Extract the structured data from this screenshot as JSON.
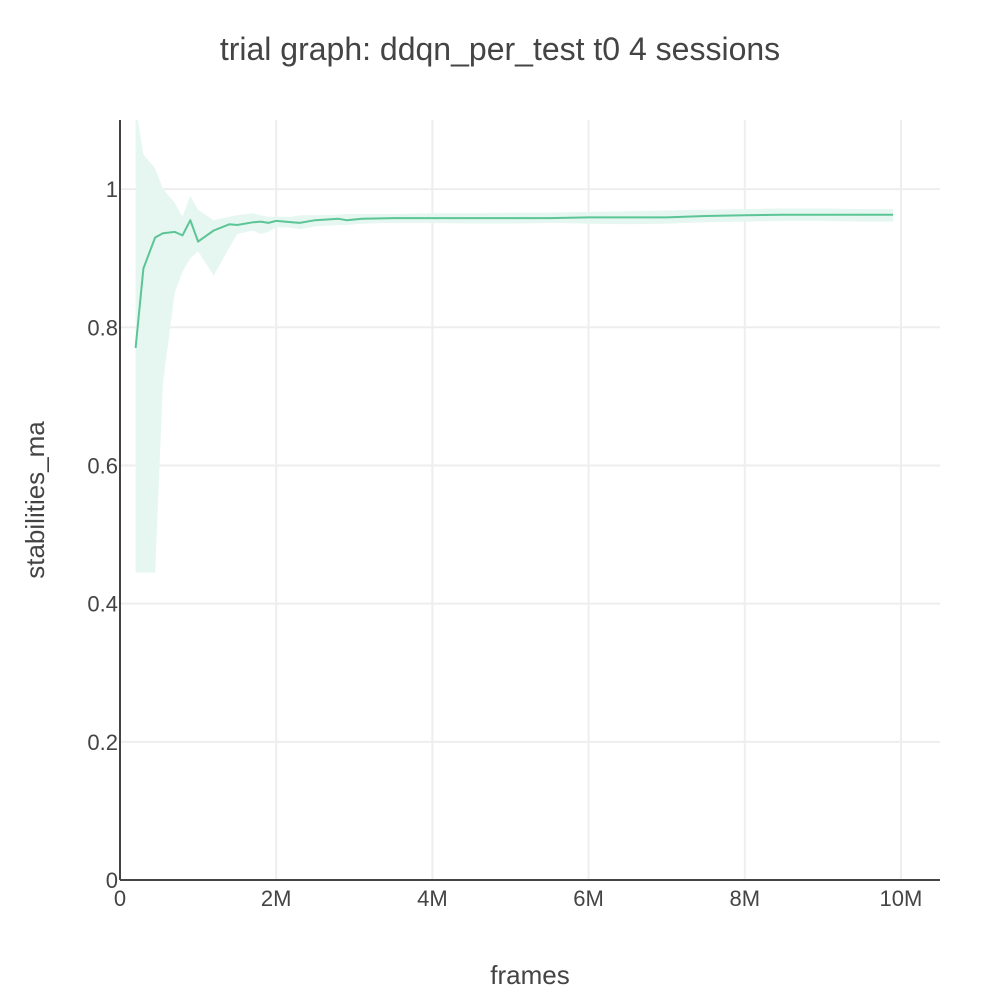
{
  "chart_data": {
    "type": "line",
    "title": "trial graph: ddqn_per_test t0 4 sessions",
    "xlabel": "frames",
    "ylabel": "stabilities_ma",
    "xlim": [
      0,
      10500000
    ],
    "ylim": [
      0,
      1.1
    ],
    "x_ticks": [
      0,
      2000000,
      4000000,
      6000000,
      8000000,
      10000000
    ],
    "x_tick_labels": [
      "0",
      "2M",
      "4M",
      "6M",
      "8M",
      "10M"
    ],
    "y_ticks": [
      0,
      0.2,
      0.4,
      0.6,
      0.8,
      1.0
    ],
    "y_tick_labels": [
      "0",
      "0.2",
      "0.4",
      "0.6",
      "0.8",
      "1"
    ],
    "grid": true,
    "legend": "none",
    "colors": {
      "line": "#5cc596",
      "band": "#e6f6f0"
    },
    "series": [
      {
        "x": [
          200000,
          300000,
          450000,
          550000,
          700000,
          800000,
          900000,
          1000000,
          1200000,
          1400000,
          1500000,
          1700000,
          1800000,
          1900000,
          2000000,
          2200000,
          2300000,
          2500000,
          2800000,
          2900000,
          3100000,
          3500000,
          4000000,
          4500000,
          5000000,
          5500000,
          6000000,
          6500000,
          7000000,
          7500000,
          8000000,
          8500000,
          9000000,
          9500000,
          9900000
        ],
        "y": [
          0.77,
          0.885,
          0.93,
          0.936,
          0.938,
          0.933,
          0.955,
          0.924,
          0.94,
          0.949,
          0.948,
          0.952,
          0.953,
          0.951,
          0.954,
          0.952,
          0.951,
          0.955,
          0.957,
          0.955,
          0.957,
          0.958,
          0.958,
          0.958,
          0.958,
          0.958,
          0.959,
          0.959,
          0.959,
          0.961,
          0.962,
          0.963,
          0.963,
          0.963,
          0.963
        ],
        "upper": [
          1.12,
          1.05,
          1.03,
          1.0,
          0.98,
          0.96,
          0.99,
          0.97,
          0.955,
          0.96,
          0.962,
          0.965,
          0.962,
          0.96,
          0.96,
          0.96,
          0.962,
          0.962,
          0.963,
          0.964,
          0.964,
          0.964,
          0.965,
          0.965,
          0.966,
          0.966,
          0.967,
          0.968,
          0.969,
          0.97,
          0.971,
          0.972,
          0.972,
          0.971,
          0.971
        ],
        "lower": [
          0.445,
          0.445,
          0.445,
          0.72,
          0.85,
          0.88,
          0.9,
          0.91,
          0.875,
          0.915,
          0.935,
          0.94,
          0.935,
          0.938,
          0.945,
          0.944,
          0.942,
          0.946,
          0.948,
          0.948,
          0.95,
          0.951,
          0.951,
          0.95,
          0.95,
          0.951,
          0.95,
          0.949,
          0.95,
          0.952,
          0.953,
          0.954,
          0.954,
          0.953,
          0.953
        ]
      }
    ]
  }
}
